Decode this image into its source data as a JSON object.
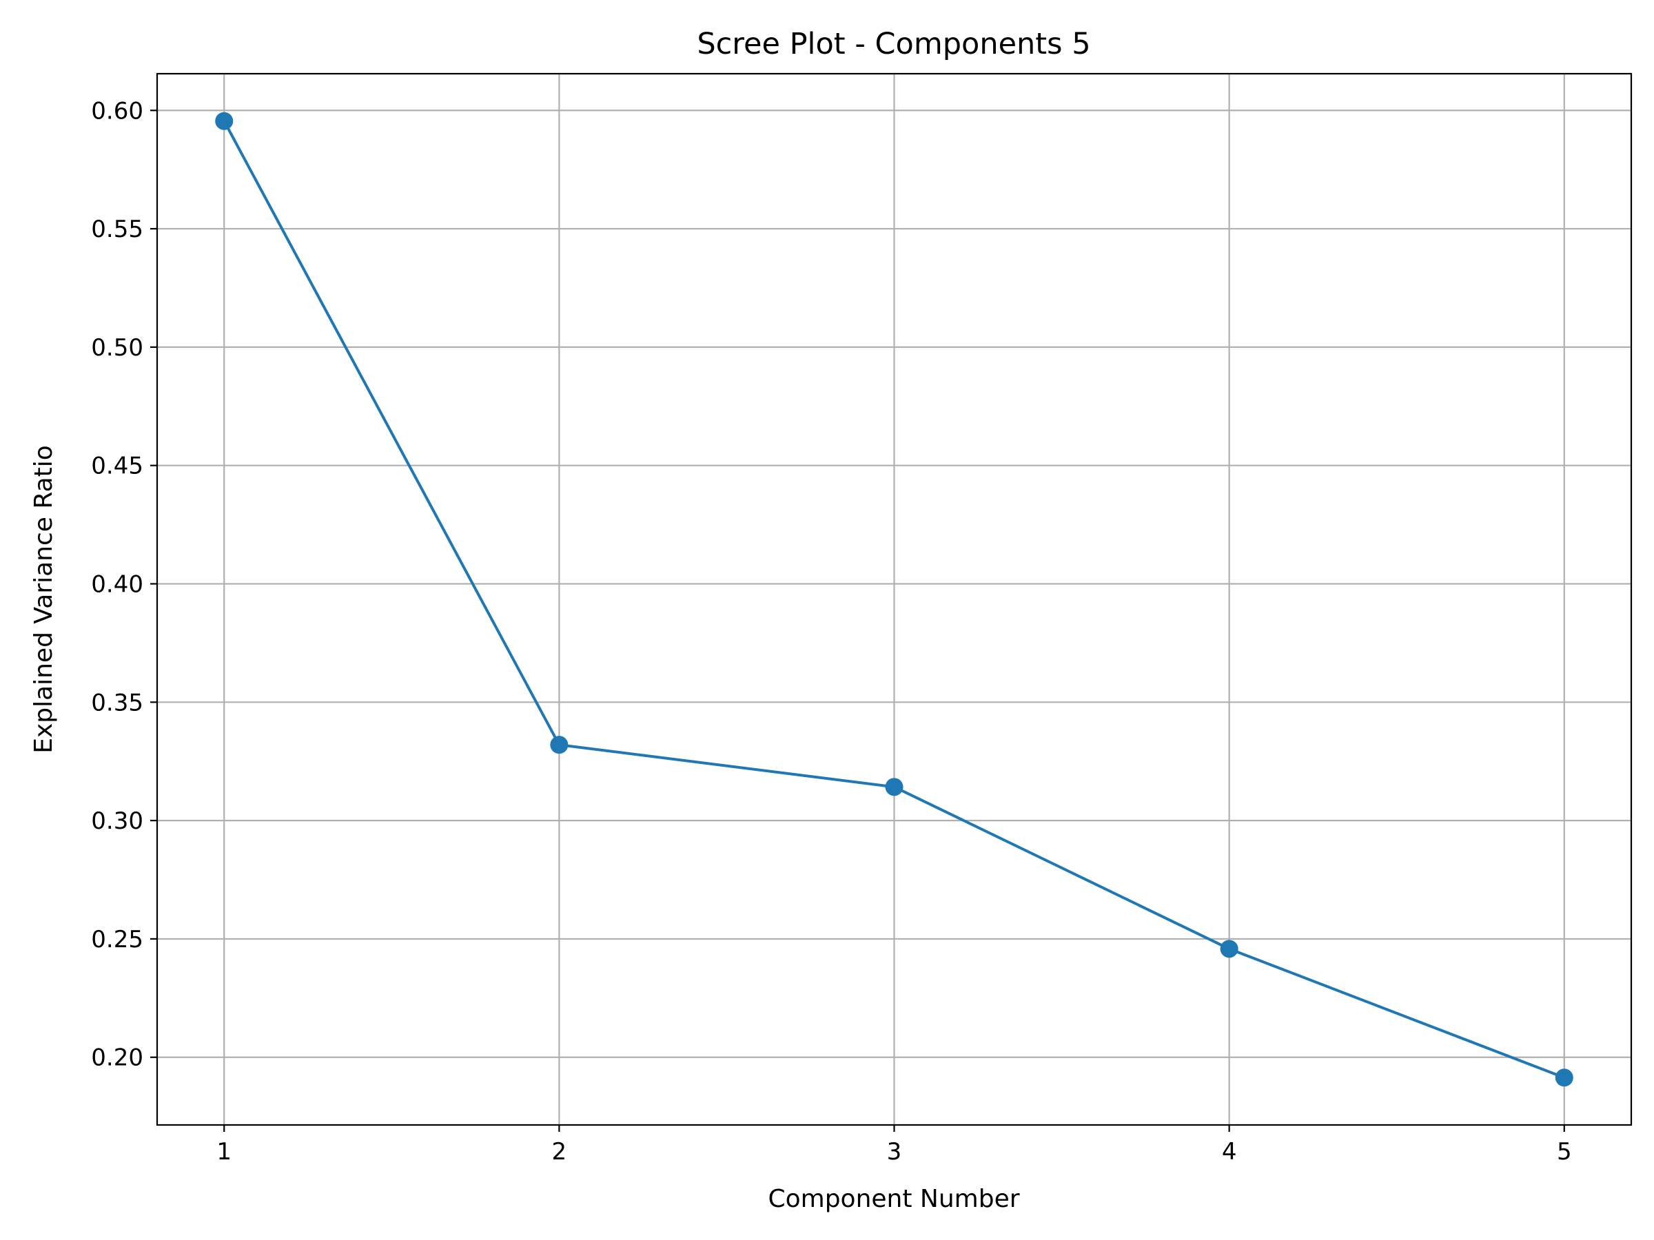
{
  "chart_data": {
    "type": "line",
    "title": "Scree Plot - Components 5",
    "xlabel": "Component Number",
    "ylabel": "Explained Variance Ratio",
    "x": [
      1,
      2,
      3,
      4,
      5
    ],
    "series": [
      {
        "values": [
          0.5955,
          0.332,
          0.3142,
          0.2458,
          0.1914
        ]
      }
    ],
    "xticks": [
      "1",
      "2",
      "3",
      "4",
      "5"
    ],
    "yticks": [
      "0.20",
      "0.25",
      "0.30",
      "0.35",
      "0.40",
      "0.45",
      "0.50",
      "0.55",
      "0.60"
    ],
    "xlim": [
      0.8,
      5.2
    ],
    "ylim": [
      0.1714,
      0.6155
    ],
    "grid": true,
    "marker": "circle",
    "line_color": "#1f77b4",
    "grid_color": "#b0b0b0"
  }
}
